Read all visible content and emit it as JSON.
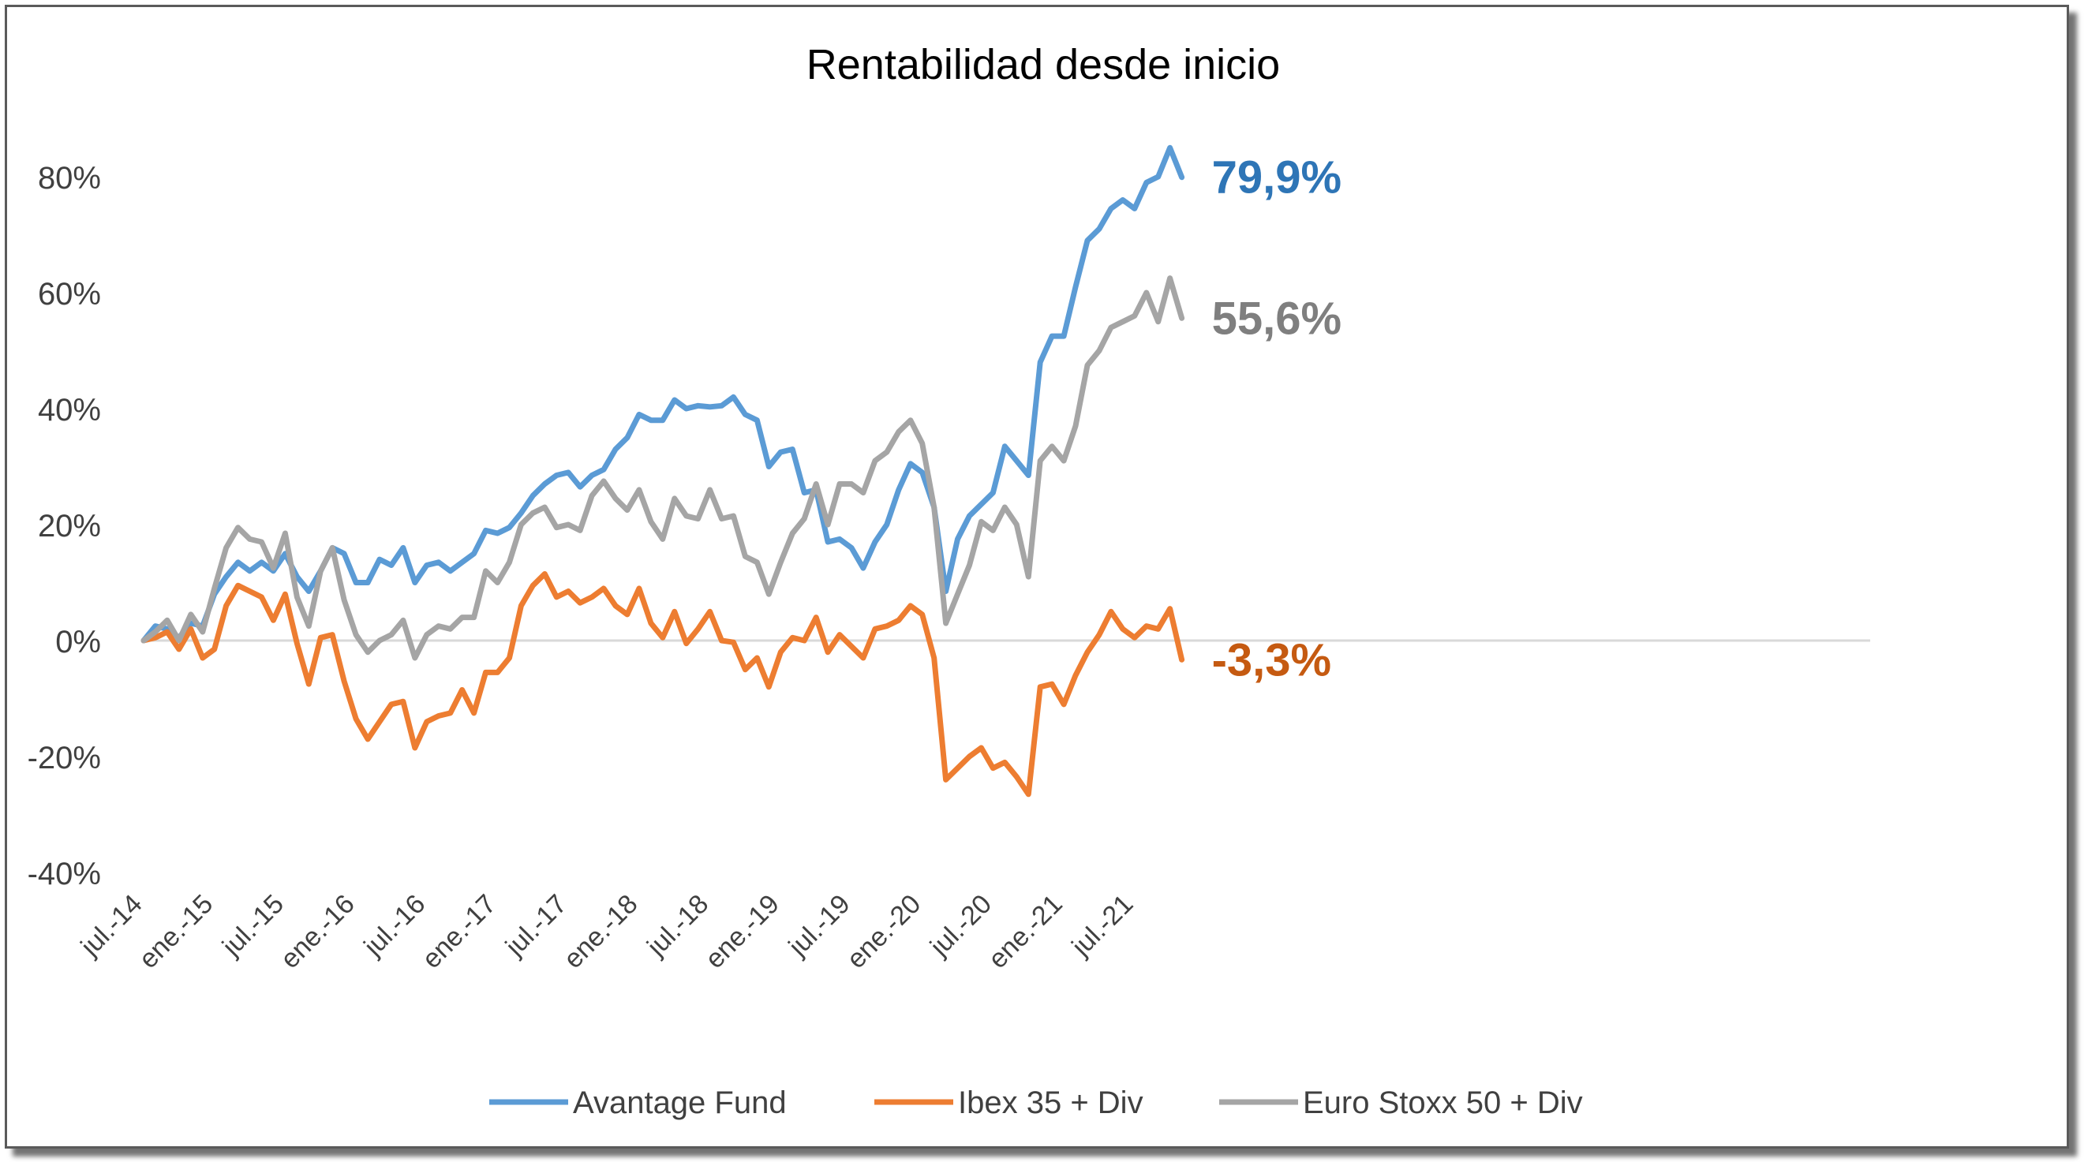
{
  "chart_data": {
    "type": "line",
    "title": "Rentabilidad desde inicio",
    "xlabel": "",
    "ylabel": "",
    "ylim": [
      -40,
      80
    ],
    "y_ticks": [
      "80%",
      "60%",
      "40%",
      "20%",
      "0%",
      "-20%",
      "-40%"
    ],
    "y_tick_values": [
      80,
      60,
      40,
      20,
      0,
      -20,
      -40
    ],
    "x_ticks": [
      "jul.-14",
      "ene.-15",
      "jul.-15",
      "ene.-16",
      "jul.-16",
      "ene.-17",
      "jul.-17",
      "ene.-18",
      "jul.-18",
      "ene.-19",
      "jul.-19",
      "ene.-20",
      "jul.-20",
      "ene.-21",
      "jul.-21"
    ],
    "x_tick_month_index": [
      0,
      6,
      12,
      18,
      24,
      30,
      36,
      42,
      48,
      54,
      60,
      66,
      72,
      78,
      84
    ],
    "x_start": "jul.-14",
    "x_step": "month",
    "grid": false,
    "legend_position": "bottom",
    "series": [
      {
        "name": "Avantage Fund",
        "color": "#5b9bd5",
        "end_label": "79,9%",
        "label_color": "#2e75b6",
        "values": [
          0,
          2.5,
          2,
          0.5,
          3,
          2.5,
          8,
          11,
          13.5,
          12,
          13.5,
          12,
          15,
          11,
          8.5,
          12,
          16,
          15,
          10,
          10,
          14,
          13,
          16,
          10,
          13,
          13.5,
          12,
          13.5,
          15,
          19,
          18.5,
          19.5,
          22,
          25,
          27,
          28.5,
          29,
          26.5,
          28.5,
          29.5,
          33,
          35,
          39,
          38,
          38,
          41.5,
          40,
          40.5,
          40.3,
          40.5,
          42,
          39,
          38,
          30,
          32.5,
          33,
          25.5,
          26,
          17,
          17.5,
          16,
          12.5,
          17,
          20,
          26,
          30.5,
          29,
          23,
          8.5,
          17.5,
          21.5,
          23.5,
          25.5,
          33.5,
          31,
          28.5,
          48,
          52.5,
          52.5,
          61,
          69,
          71,
          74.5,
          76,
          74.5,
          79,
          80,
          85,
          79.9
        ]
      },
      {
        "name": "Ibex 35 + Div",
        "color": "#ed7d31",
        "end_label": "-3,3%",
        "label_color": "#c55a11",
        "values": [
          0,
          0.5,
          1.5,
          -1.5,
          2,
          -3,
          -1.5,
          6,
          9.5,
          8.5,
          7.5,
          3.5,
          8,
          -0.5,
          -7.5,
          0.5,
          1,
          -7,
          -13.5,
          -17,
          -14,
          -11,
          -10.5,
          -18.5,
          -14,
          -13,
          -12.5,
          -8.5,
          -12.5,
          -5.5,
          -5.5,
          -3,
          6,
          9.5,
          11.5,
          7.5,
          8.5,
          6.5,
          7.5,
          9,
          6,
          4.5,
          9,
          3,
          0.5,
          5,
          -0.5,
          2,
          5,
          0,
          -0.3,
          -5,
          -3,
          -8,
          -2,
          0.5,
          0,
          4,
          -2,
          1,
          -1,
          -3,
          2,
          2.5,
          3.5,
          6,
          4.5,
          -3,
          -24,
          -22,
          -20,
          -18.5,
          -22,
          -21,
          -23.5,
          -26.5,
          -8,
          -7.5,
          -11,
          -6,
          -2,
          1,
          5,
          2,
          0.5,
          2.5,
          2,
          5.5,
          -3.3
        ]
      },
      {
        "name": "Euro Stoxx 50 + Div",
        "color": "#a5a5a5",
        "end_label": "55,6%",
        "label_color": "#7f7f7f",
        "values": [
          0,
          1.5,
          3.5,
          0,
          4.5,
          1.5,
          9,
          16,
          19.5,
          17.5,
          17,
          12.5,
          18.5,
          7.5,
          2.5,
          12,
          16,
          7,
          1,
          -2,
          0,
          1,
          3.5,
          -3,
          1,
          2.5,
          2,
          4,
          4,
          12,
          10,
          13.5,
          20,
          22,
          23,
          19.5,
          20,
          19,
          25,
          27.5,
          24.5,
          22.5,
          26,
          20.5,
          17.5,
          24.5,
          21.5,
          21,
          26,
          21,
          21.5,
          14.5,
          13.5,
          8,
          13.5,
          18.5,
          21,
          27,
          20,
          27,
          27,
          25.5,
          31,
          32.5,
          36,
          38,
          34,
          23,
          3,
          8,
          13,
          20.5,
          19,
          23,
          20,
          11,
          31,
          33.5,
          31,
          37,
          47.5,
          50,
          54,
          55,
          56,
          60,
          55,
          62.5,
          55.6
        ]
      }
    ]
  }
}
